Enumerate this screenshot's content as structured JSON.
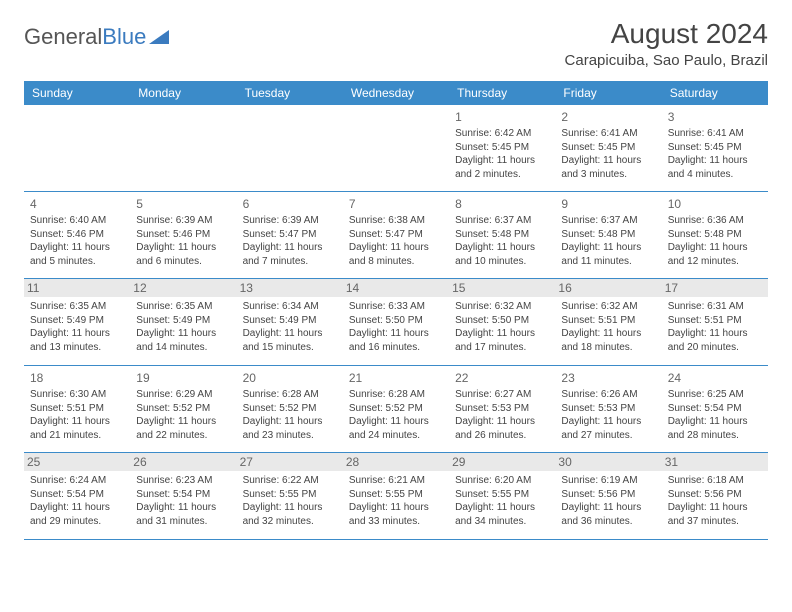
{
  "logo": {
    "text1": "General",
    "text2": "Blue"
  },
  "title": "August 2024",
  "location": "Carapicuiba, Sao Paulo, Brazil",
  "colors": {
    "header_bg": "#3b8bc9",
    "header_text": "#ffffff",
    "border": "#3b8bc9",
    "shade": "#e9e9e9",
    "text": "#444444",
    "logo_gray": "#555555",
    "logo_blue": "#3b7bbf"
  },
  "weekdays": [
    "Sunday",
    "Monday",
    "Tuesday",
    "Wednesday",
    "Thursday",
    "Friday",
    "Saturday"
  ],
  "weeks": [
    [
      {
        "n": "",
        "sr": "",
        "ss": "",
        "dl": ""
      },
      {
        "n": "",
        "sr": "",
        "ss": "",
        "dl": ""
      },
      {
        "n": "",
        "sr": "",
        "ss": "",
        "dl": ""
      },
      {
        "n": "",
        "sr": "",
        "ss": "",
        "dl": ""
      },
      {
        "n": "1",
        "sr": "Sunrise: 6:42 AM",
        "ss": "Sunset: 5:45 PM",
        "dl": "Daylight: 11 hours and 2 minutes."
      },
      {
        "n": "2",
        "sr": "Sunrise: 6:41 AM",
        "ss": "Sunset: 5:45 PM",
        "dl": "Daylight: 11 hours and 3 minutes."
      },
      {
        "n": "3",
        "sr": "Sunrise: 6:41 AM",
        "ss": "Sunset: 5:45 PM",
        "dl": "Daylight: 11 hours and 4 minutes."
      }
    ],
    [
      {
        "n": "4",
        "sr": "Sunrise: 6:40 AM",
        "ss": "Sunset: 5:46 PM",
        "dl": "Daylight: 11 hours and 5 minutes."
      },
      {
        "n": "5",
        "sr": "Sunrise: 6:39 AM",
        "ss": "Sunset: 5:46 PM",
        "dl": "Daylight: 11 hours and 6 minutes."
      },
      {
        "n": "6",
        "sr": "Sunrise: 6:39 AM",
        "ss": "Sunset: 5:47 PM",
        "dl": "Daylight: 11 hours and 7 minutes."
      },
      {
        "n": "7",
        "sr": "Sunrise: 6:38 AM",
        "ss": "Sunset: 5:47 PM",
        "dl": "Daylight: 11 hours and 8 minutes."
      },
      {
        "n": "8",
        "sr": "Sunrise: 6:37 AM",
        "ss": "Sunset: 5:48 PM",
        "dl": "Daylight: 11 hours and 10 minutes."
      },
      {
        "n": "9",
        "sr": "Sunrise: 6:37 AM",
        "ss": "Sunset: 5:48 PM",
        "dl": "Daylight: 11 hours and 11 minutes."
      },
      {
        "n": "10",
        "sr": "Sunrise: 6:36 AM",
        "ss": "Sunset: 5:48 PM",
        "dl": "Daylight: 11 hours and 12 minutes."
      }
    ],
    [
      {
        "n": "11",
        "sr": "Sunrise: 6:35 AM",
        "ss": "Sunset: 5:49 PM",
        "dl": "Daylight: 11 hours and 13 minutes."
      },
      {
        "n": "12",
        "sr": "Sunrise: 6:35 AM",
        "ss": "Sunset: 5:49 PM",
        "dl": "Daylight: 11 hours and 14 minutes."
      },
      {
        "n": "13",
        "sr": "Sunrise: 6:34 AM",
        "ss": "Sunset: 5:49 PM",
        "dl": "Daylight: 11 hours and 15 minutes."
      },
      {
        "n": "14",
        "sr": "Sunrise: 6:33 AM",
        "ss": "Sunset: 5:50 PM",
        "dl": "Daylight: 11 hours and 16 minutes."
      },
      {
        "n": "15",
        "sr": "Sunrise: 6:32 AM",
        "ss": "Sunset: 5:50 PM",
        "dl": "Daylight: 11 hours and 17 minutes."
      },
      {
        "n": "16",
        "sr": "Sunrise: 6:32 AM",
        "ss": "Sunset: 5:51 PM",
        "dl": "Daylight: 11 hours and 18 minutes."
      },
      {
        "n": "17",
        "sr": "Sunrise: 6:31 AM",
        "ss": "Sunset: 5:51 PM",
        "dl": "Daylight: 11 hours and 20 minutes."
      }
    ],
    [
      {
        "n": "18",
        "sr": "Sunrise: 6:30 AM",
        "ss": "Sunset: 5:51 PM",
        "dl": "Daylight: 11 hours and 21 minutes."
      },
      {
        "n": "19",
        "sr": "Sunrise: 6:29 AM",
        "ss": "Sunset: 5:52 PM",
        "dl": "Daylight: 11 hours and 22 minutes."
      },
      {
        "n": "20",
        "sr": "Sunrise: 6:28 AM",
        "ss": "Sunset: 5:52 PM",
        "dl": "Daylight: 11 hours and 23 minutes."
      },
      {
        "n": "21",
        "sr": "Sunrise: 6:28 AM",
        "ss": "Sunset: 5:52 PM",
        "dl": "Daylight: 11 hours and 24 minutes."
      },
      {
        "n": "22",
        "sr": "Sunrise: 6:27 AM",
        "ss": "Sunset: 5:53 PM",
        "dl": "Daylight: 11 hours and 26 minutes."
      },
      {
        "n": "23",
        "sr": "Sunrise: 6:26 AM",
        "ss": "Sunset: 5:53 PM",
        "dl": "Daylight: 11 hours and 27 minutes."
      },
      {
        "n": "24",
        "sr": "Sunrise: 6:25 AM",
        "ss": "Sunset: 5:54 PM",
        "dl": "Daylight: 11 hours and 28 minutes."
      }
    ],
    [
      {
        "n": "25",
        "sr": "Sunrise: 6:24 AM",
        "ss": "Sunset: 5:54 PM",
        "dl": "Daylight: 11 hours and 29 minutes."
      },
      {
        "n": "26",
        "sr": "Sunrise: 6:23 AM",
        "ss": "Sunset: 5:54 PM",
        "dl": "Daylight: 11 hours and 31 minutes."
      },
      {
        "n": "27",
        "sr": "Sunrise: 6:22 AM",
        "ss": "Sunset: 5:55 PM",
        "dl": "Daylight: 11 hours and 32 minutes."
      },
      {
        "n": "28",
        "sr": "Sunrise: 6:21 AM",
        "ss": "Sunset: 5:55 PM",
        "dl": "Daylight: 11 hours and 33 minutes."
      },
      {
        "n": "29",
        "sr": "Sunrise: 6:20 AM",
        "ss": "Sunset: 5:55 PM",
        "dl": "Daylight: 11 hours and 34 minutes."
      },
      {
        "n": "30",
        "sr": "Sunrise: 6:19 AM",
        "ss": "Sunset: 5:56 PM",
        "dl": "Daylight: 11 hours and 36 minutes."
      },
      {
        "n": "31",
        "sr": "Sunrise: 6:18 AM",
        "ss": "Sunset: 5:56 PM",
        "dl": "Daylight: 11 hours and 37 minutes."
      }
    ]
  ],
  "shaded_weeks": [
    2,
    4
  ]
}
